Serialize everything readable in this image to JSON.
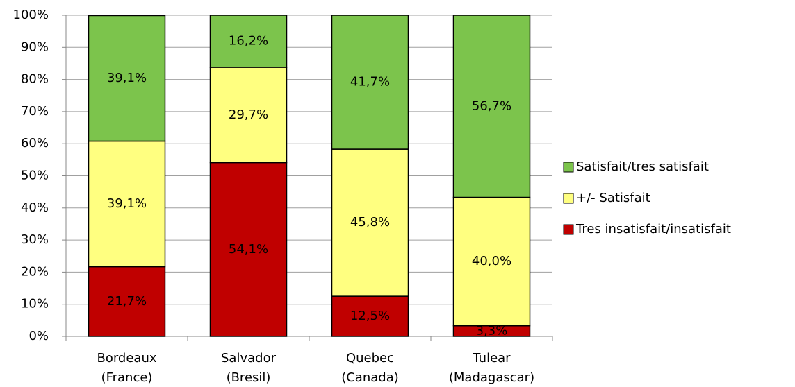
{
  "chart_data": {
    "type": "stacked_bar",
    "categories": [
      "Bordeaux (France)",
      "Salvador (Bresil)",
      "Quebec (Canada)",
      "Tulear (Madagascar)"
    ],
    "series": [
      {
        "name": "Tres insatisfait/insatisfait",
        "color": "#c00000",
        "values": [
          21.7,
          54.1,
          12.5,
          3.3
        ],
        "value_labels": [
          "21,7%",
          "54,1%",
          "12,5%",
          "3,3%"
        ]
      },
      {
        "name": "+/- Satisfait",
        "color": "#ffff80",
        "values": [
          39.1,
          29.7,
          45.8,
          40.0
        ],
        "value_labels": [
          "39,1%",
          "29,7%",
          "45,8%",
          "40,0%"
        ]
      },
      {
        "name": "Satisfait/tres satisfait",
        "color": "#7cc44c",
        "values": [
          39.1,
          16.2,
          41.7,
          56.7
        ],
        "value_labels": [
          "39,1%",
          "16,2%",
          "41,7%",
          "56,7%"
        ]
      }
    ],
    "ylim": [
      0,
      100
    ],
    "yticks": [
      {
        "value": 0,
        "label": "0%"
      },
      {
        "value": 10,
        "label": "10%"
      },
      {
        "value": 20,
        "label": "20%"
      },
      {
        "value": 30,
        "label": "30%"
      },
      {
        "value": 40,
        "label": "40%"
      },
      {
        "value": 50,
        "label": "50%"
      },
      {
        "value": 60,
        "label": "60%"
      },
      {
        "value": 70,
        "label": "70%"
      },
      {
        "value": 80,
        "label": "80%"
      },
      {
        "value": 90,
        "label": "90%"
      },
      {
        "value": 100,
        "label": "100%"
      }
    ],
    "grid": true,
    "legend": "right"
  }
}
